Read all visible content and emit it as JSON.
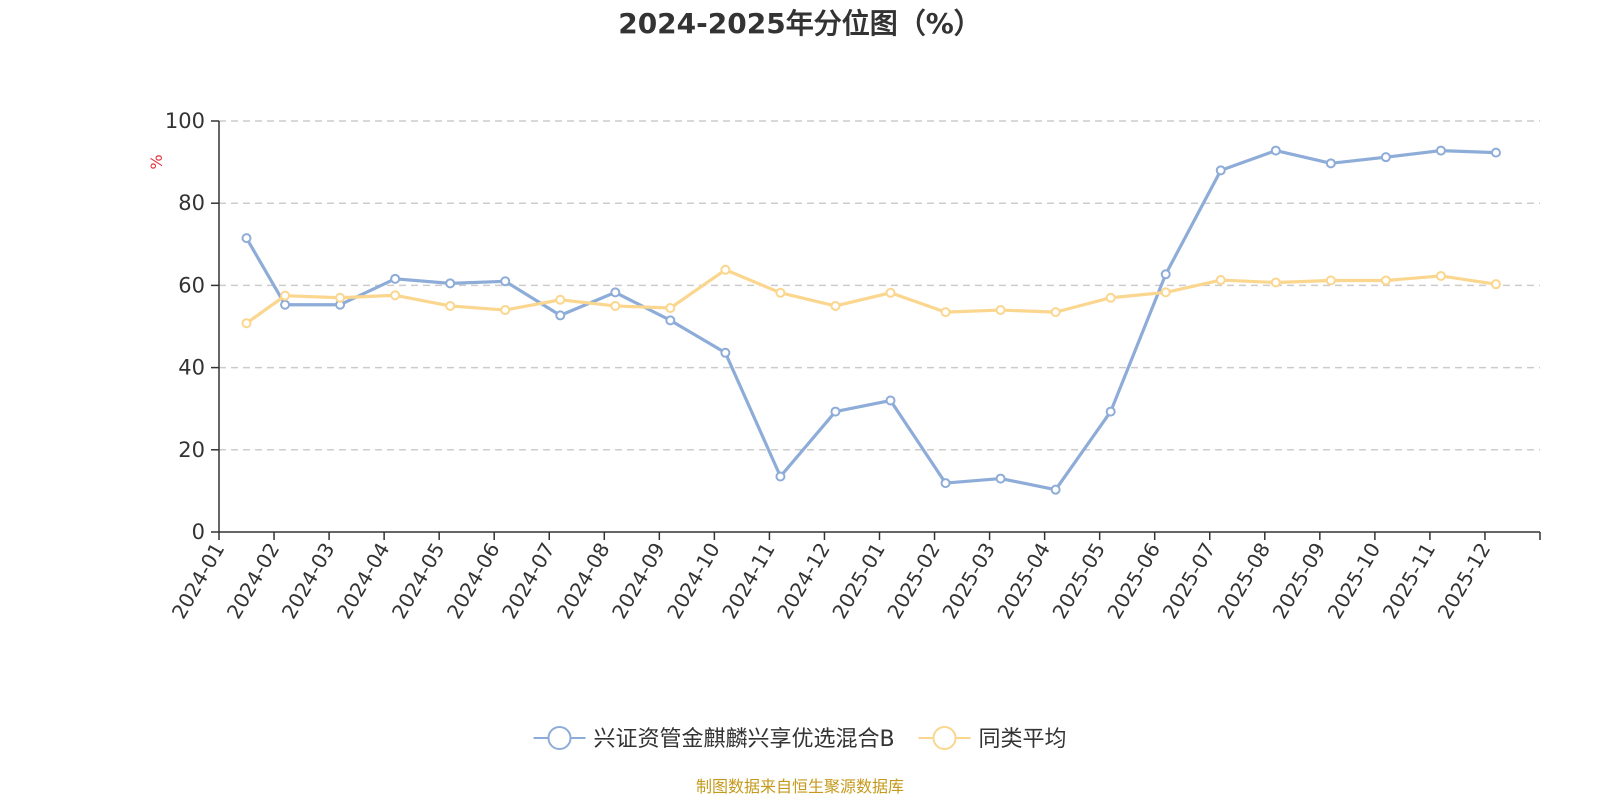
{
  "chart_data": {
    "type": "line",
    "title": "2024-2025年分位图（%）",
    "ylabel": "%",
    "xlabel": "",
    "ylim": [
      0,
      100
    ],
    "yticks": [
      0,
      20,
      40,
      60,
      80,
      100
    ],
    "grid": true,
    "legend_position": "bottom",
    "categories": [
      "2024-01",
      "2024-02",
      "2024-03",
      "2024-04",
      "2024-05",
      "2024-06",
      "2024-07",
      "2024-08",
      "2024-09",
      "2024-10",
      "2024-11",
      "2024-12",
      "2025-01",
      "2025-02",
      "2025-03",
      "2025-04",
      "2025-05",
      "2025-06",
      "2025-07",
      "2025-08",
      "2025-09",
      "2025-10",
      "2025-11",
      "2025-12"
    ],
    "series": [
      {
        "name": "兴证资管金麒麟兴享优选混合B",
        "color": "#8eacd8",
        "values": [
          71.5,
          55.3,
          55.3,
          61.6,
          60.5,
          61.0,
          52.7,
          58.3,
          51.5,
          43.6,
          13.5,
          29.3,
          32.0,
          11.9,
          13.0,
          10.3,
          29.3,
          62.7,
          88.0,
          92.8,
          89.7,
          91.2,
          92.8,
          92.3
        ],
        "x_positions": [
          0.0,
          0.7,
          1.7,
          2.7,
          3.7,
          4.7,
          5.7,
          6.7,
          7.7,
          8.7,
          9.7,
          10.7,
          11.7,
          12.7,
          13.7,
          14.7,
          15.7,
          16.7,
          17.7,
          18.7,
          19.7,
          20.7,
          21.7,
          22.7
        ]
      },
      {
        "name": "同类平均",
        "color": "#fbd68e",
        "values": [
          50.8,
          57.5,
          57.0,
          57.6,
          55.0,
          54.0,
          56.5,
          55.0,
          54.5,
          63.8,
          58.2,
          55.0,
          58.2,
          53.5,
          54.0,
          53.5,
          57.0,
          58.3,
          61.3,
          60.7,
          61.2,
          61.2,
          62.3,
          60.3
        ],
        "x_positions": [
          0.0,
          0.7,
          1.7,
          2.7,
          3.7,
          4.7,
          5.7,
          6.7,
          7.7,
          8.7,
          9.7,
          10.7,
          11.7,
          12.7,
          13.7,
          14.7,
          15.7,
          16.7,
          17.7,
          18.7,
          19.7,
          20.7,
          21.7,
          22.7
        ]
      }
    ]
  },
  "source_text": "制图数据来自恒生聚源数据库",
  "colors": {
    "text": "#333333",
    "unit": "#e5323e",
    "source": "#c59a1c",
    "grid": "#cccccc",
    "axis": "#333333"
  }
}
